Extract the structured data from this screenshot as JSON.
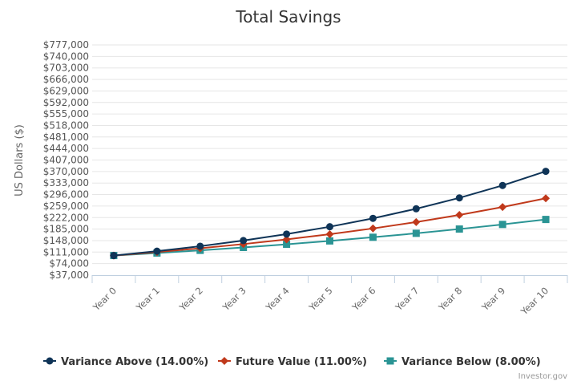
{
  "chart_data": {
    "type": "line",
    "title": "Total Savings",
    "ylabel": "US Dollars ($)",
    "xlabel": "",
    "categories": [
      "Year 0",
      "Year 1",
      "Year 2",
      "Year 3",
      "Year 4",
      "Year 5",
      "Year 6",
      "Year 7",
      "Year 8",
      "Year 9",
      "Year 10"
    ],
    "ylim": [
      37000,
      777000
    ],
    "yticks": [
      37000,
      74000,
      111000,
      148000,
      185000,
      222000,
      259000,
      296000,
      333000,
      370000,
      407000,
      444000,
      481000,
      518000,
      555000,
      592000,
      629000,
      666000,
      703000,
      740000,
      777000
    ],
    "ytick_labels": [
      "$37,000",
      "$74,000",
      "$111,000",
      "$148,000",
      "$185,000",
      "$222,000",
      "$259,000",
      "$296,000",
      "$333,000",
      "$370,000",
      "$407,000",
      "$444,000",
      "$481,000",
      "$518,000",
      "$555,000",
      "$592,000",
      "$629,000",
      "$666,000",
      "$703,000",
      "$740,000",
      "$777,000"
    ],
    "series": [
      {
        "name": "Variance Above (14.00%)",
        "color": "#0f3457",
        "marker": "circle",
        "values": [
          100000,
          114000,
          129960,
          148154,
          168896,
          192541,
          219497,
          250227,
          285259,
          325195,
          370722
        ]
      },
      {
        "name": "Future Value (11.00%)",
        "color": "#c0391b",
        "marker": "diamond",
        "values": [
          100000,
          111000,
          123210,
          136763,
          151807,
          168506,
          187041,
          207616,
          230454,
          255804,
          283942
        ]
      },
      {
        "name": "Variance Below (8.00%)",
        "color": "#2a9494",
        "marker": "square",
        "values": [
          100000,
          108000,
          116640,
          125971,
          136049,
          146933,
          158687,
          171382,
          185093,
          199900,
          215892
        ]
      }
    ],
    "grid": true,
    "legend_position": "bottom-center"
  },
  "credit": "Investor.gov"
}
